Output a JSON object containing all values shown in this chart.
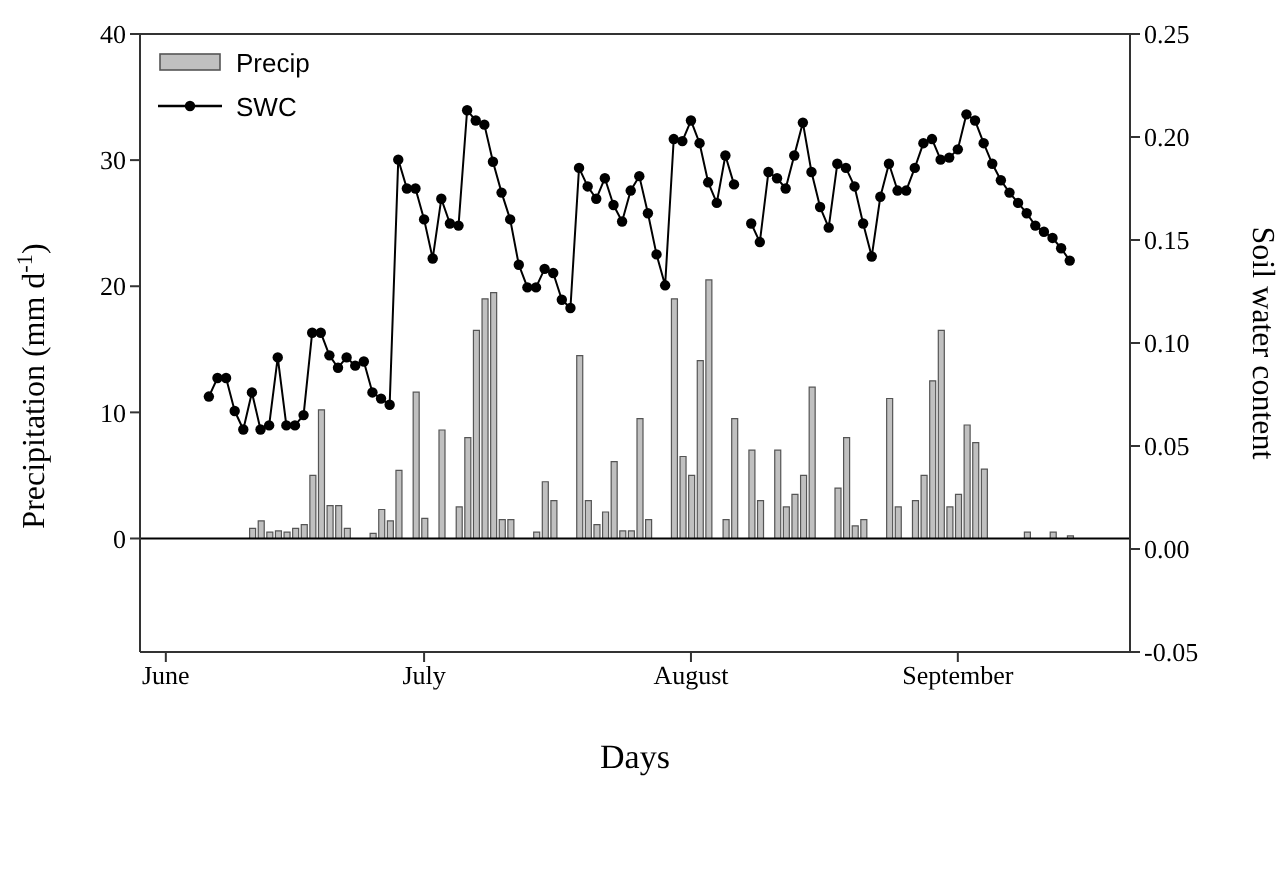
{
  "chart_data": {
    "type": "bar",
    "xlabel": "Days",
    "ylabel": "Precipitation (mm d$^{-1}$)",
    "y2label": "Soil water content",
    "xlim": [
      "--05-29",
      "--09-21"
    ],
    "xticks": [
      {
        "value": "--06-01",
        "label": "June"
      },
      {
        "value": "--07-01",
        "label": "July"
      },
      {
        "value": "--08-01",
        "label": "August"
      },
      {
        "value": "--09-01",
        "label": "September"
      }
    ],
    "ylim": [
      -9,
      40
    ],
    "yticks": [
      0,
      10,
      20,
      30,
      40
    ],
    "y2lim": [
      -0.05,
      0.25
    ],
    "y2ticks": [
      {
        "value": -0.05,
        "label": "-0.05"
      },
      {
        "value": 0,
        "label": "0.00"
      },
      {
        "value": 0.05,
        "label": "0.05"
      },
      {
        "value": 0.1,
        "label": "0.10"
      },
      {
        "value": 0.15,
        "label": "0.15"
      },
      {
        "value": 0.2,
        "label": "0.20"
      },
      {
        "value": 0.25,
        "label": "0.25"
      }
    ],
    "legend": "top left",
    "marker": "circle",
    "ref_lines": [
      {
        "axis": "y",
        "value": 0,
        "color": "#000000"
      }
    ],
    "series": [
      {
        "name": "Precip",
        "color": "#c0c0c0",
        "x": [
          "--06-11",
          "--06-12",
          "--06-13",
          "--06-14",
          "--06-15",
          "--06-16",
          "--06-17",
          "--06-18",
          "--06-19",
          "--06-20",
          "--06-21",
          "--06-22",
          "--06-25",
          "--06-26",
          "--06-27",
          "--06-28",
          "--06-30",
          "--07-01",
          "--07-03",
          "--07-05",
          "--07-06",
          "--07-07",
          "--07-08",
          "--07-09",
          "--07-10",
          "--07-11",
          "--07-14",
          "--07-15",
          "--07-16",
          "--07-19",
          "--07-20",
          "--07-21",
          "--07-22",
          "--07-23",
          "--07-24",
          "--07-25",
          "--07-26",
          "--07-27",
          "--07-30",
          "--07-31",
          "--08-01",
          "--08-02",
          "--08-03",
          "--08-05",
          "--08-06",
          "--08-08",
          "--08-09",
          "--08-11",
          "--08-12",
          "--08-13",
          "--08-14",
          "--08-15",
          "--08-18",
          "--08-19",
          "--08-20",
          "--08-21",
          "--08-24",
          "--08-25",
          "--08-27",
          "--08-28",
          "--08-29",
          "--08-30",
          "--08-31",
          "--09-01",
          "--09-02",
          "--09-03",
          "--09-04",
          "--09-09",
          "--09-12",
          "--09-14"
        ],
        "values": [
          0.8,
          1.4,
          0.5,
          0.6,
          0.5,
          0.8,
          1.1,
          5.0,
          10.2,
          2.6,
          2.6,
          0.8,
          0.4,
          2.3,
          1.4,
          5.4,
          11.6,
          1.6,
          8.6,
          2.5,
          8.0,
          16.5,
          19.0,
          19.5,
          1.5,
          1.5,
          0.5,
          4.5,
          3.0,
          14.5,
          3.0,
          1.1,
          2.1,
          6.1,
          0.6,
          0.6,
          9.5,
          1.5,
          19.0,
          6.5,
          5.0,
          14.1,
          20.5,
          1.5,
          9.5,
          7.0,
          3.0,
          7.0,
          2.5,
          3.5,
          5.0,
          12.0,
          4.0,
          8.0,
          1.0,
          1.5,
          11.1,
          2.5,
          3.0,
          5.0,
          12.5,
          16.5,
          2.5,
          3.5,
          9.0,
          7.6,
          5.5,
          0.5,
          0.5,
          0.2
        ]
      },
      {
        "name": "SWC",
        "type": "line",
        "axis": "y2",
        "color": "#000000",
        "x": [
          "--06-06",
          "--06-07",
          "--06-08",
          "--06-09",
          "--06-10",
          "--06-11",
          "--06-12",
          "--06-13",
          "--06-14",
          "--06-15",
          "--06-16",
          "--06-17",
          "--06-18",
          "--06-19",
          "--06-20",
          "--06-21",
          "--06-22",
          "--06-23",
          "--06-24",
          "--06-25",
          "--06-26",
          "--06-27",
          "--06-28",
          "--06-29",
          "--06-30",
          "--07-01",
          "--07-02",
          "--07-03",
          "--07-04",
          "--07-05",
          "--07-06",
          "--07-07",
          "--07-08",
          "--07-09",
          "--07-10",
          "--07-11",
          "--07-12",
          "--07-13",
          "--07-14",
          "--07-15",
          "--07-16",
          "--07-17",
          "--07-18",
          "--07-19",
          "--07-20",
          "--07-21",
          "--07-22",
          "--07-23",
          "--07-24",
          "--07-25",
          "--07-26",
          "--07-27",
          "--07-28",
          "--07-29",
          "--07-30",
          "--07-31",
          "--08-01",
          "--08-02",
          "--08-03",
          "--08-04",
          "--08-05",
          "--08-06",
          "--08-07",
          "--08-08",
          "--08-09",
          "--08-10",
          "--08-11",
          "--08-12",
          "--08-13",
          "--08-14",
          "--08-15",
          "--08-16",
          "--08-17",
          "--08-18",
          "--08-19",
          "--08-20",
          "--08-21",
          "--08-22",
          "--08-23",
          "--08-24",
          "--08-25",
          "--08-26",
          "--08-27",
          "--08-28",
          "--08-29",
          "--08-30",
          "--08-31",
          "--09-01",
          "--09-02",
          "--09-03",
          "--09-04",
          "--09-05",
          "--09-06",
          "--09-07",
          "--09-08",
          "--09-09",
          "--09-10",
          "--09-11",
          "--09-12",
          "--09-13",
          "--09-14"
        ],
        "values": [
          0.074,
          0.083,
          0.083,
          0.067,
          0.058,
          0.076,
          0.058,
          0.06,
          0.093,
          0.06,
          0.06,
          0.065,
          0.105,
          0.105,
          0.094,
          0.088,
          0.093,
          0.089,
          0.091,
          0.076,
          0.073,
          0.07,
          0.189,
          0.175,
          0.175,
          0.16,
          0.141,
          0.17,
          0.158,
          0.157,
          0.213,
          0.208,
          0.206,
          0.188,
          0.173,
          0.16,
          0.138,
          0.127,
          0.127,
          0.136,
          0.134,
          0.121,
          0.117,
          0.185,
          0.176,
          0.17,
          0.18,
          0.167,
          0.159,
          0.174,
          0.181,
          0.163,
          0.143,
          0.128,
          0.199,
          0.198,
          0.208,
          0.197,
          0.178,
          0.168,
          0.191,
          0.177,
          null,
          0.158,
          0.149,
          0.183,
          0.18,
          0.175,
          0.191,
          0.207,
          0.183,
          0.166,
          0.156,
          0.187,
          0.185,
          0.176,
          0.158,
          0.142,
          0.171,
          0.187,
          0.174,
          0.174,
          0.185,
          0.197,
          0.199,
          0.189,
          0.19,
          0.194,
          0.211,
          0.208,
          0.197,
          0.187,
          0.179,
          0.173,
          0.168,
          0.163,
          0.157,
          0.154,
          0.151,
          0.146,
          0.14
        ]
      }
    ]
  }
}
